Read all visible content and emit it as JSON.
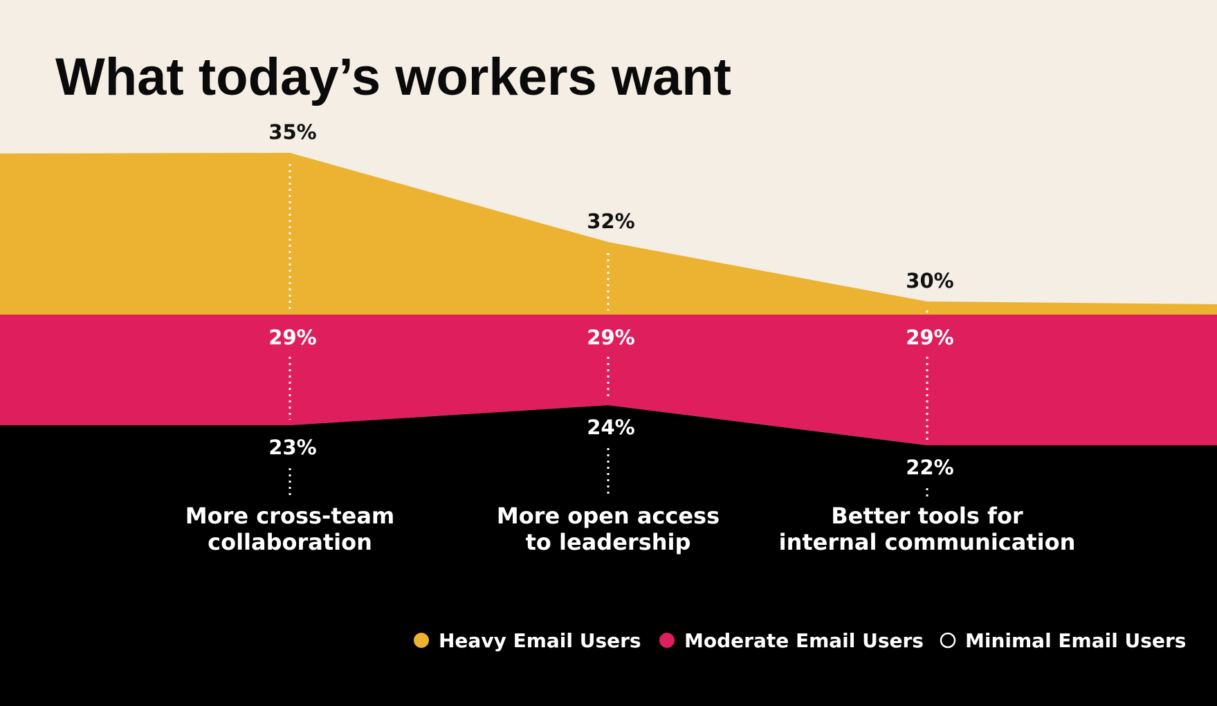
{
  "chart_data": {
    "type": "area",
    "title": "What today’s workers want",
    "categories": [
      [
        "More cross-team",
        "collaboration"
      ],
      [
        "More open access",
        "to leadership"
      ],
      [
        "Better tools for",
        "internal communication"
      ]
    ],
    "series": [
      {
        "name": "Heavy Email Users",
        "values": [
          35,
          32,
          30
        ],
        "labels": [
          "35%",
          "32%",
          "30%"
        ],
        "color": "#ecb232",
        "label_color": "#111111"
      },
      {
        "name": "Moderate Email Users",
        "values": [
          29,
          29,
          29
        ],
        "labels": [
          "29%",
          "29%",
          "29%"
        ],
        "color": "#df1f5d",
        "label_color": "#ffffff"
      },
      {
        "name": "Minimal Email Users",
        "values": [
          23,
          24,
          22
        ],
        "labels": [
          "23%",
          "24%",
          "22%"
        ],
        "color": "#000000",
        "label_color": "#ffffff"
      }
    ],
    "unit": "%",
    "legend_position": "bottom-right",
    "background_color": "#f4eee4"
  }
}
